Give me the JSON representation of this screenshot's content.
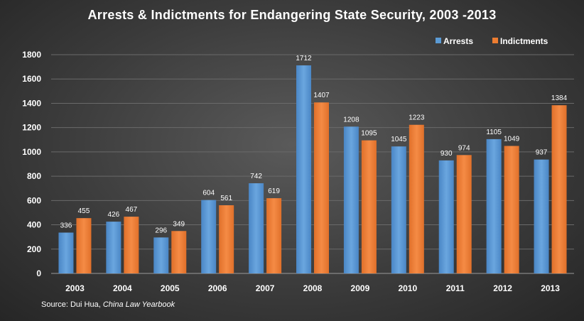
{
  "chart_data": {
    "type": "bar",
    "title": "Arrests & Indictments for Endangering State Security, 2003 -2013",
    "xlabel": "",
    "ylabel": "",
    "categories": [
      "2003",
      "2004",
      "2005",
      "2006",
      "2007",
      "2008",
      "2009",
      "2010",
      "2011",
      "2012",
      "2013"
    ],
    "series": [
      {
        "name": "Arrests",
        "color": "#5b9bd5",
        "values": [
          336,
          426,
          296,
          604,
          742,
          1712,
          1208,
          1045,
          930,
          1105,
          937
        ]
      },
      {
        "name": "Indictments",
        "color": "#ed7d31",
        "values": [
          455,
          467,
          349,
          561,
          619,
          1407,
          1095,
          1223,
          974,
          1049,
          1384
        ]
      }
    ],
    "ylim": [
      0,
      1800
    ],
    "yticks": [
      0,
      200,
      400,
      600,
      800,
      1000,
      1200,
      1400,
      1600,
      1800
    ],
    "grid": true,
    "legend": "top-right",
    "data_labels": true
  },
  "source": {
    "prefix": "Source: Dui Hua, ",
    "publication": "China Law Yearbook"
  }
}
